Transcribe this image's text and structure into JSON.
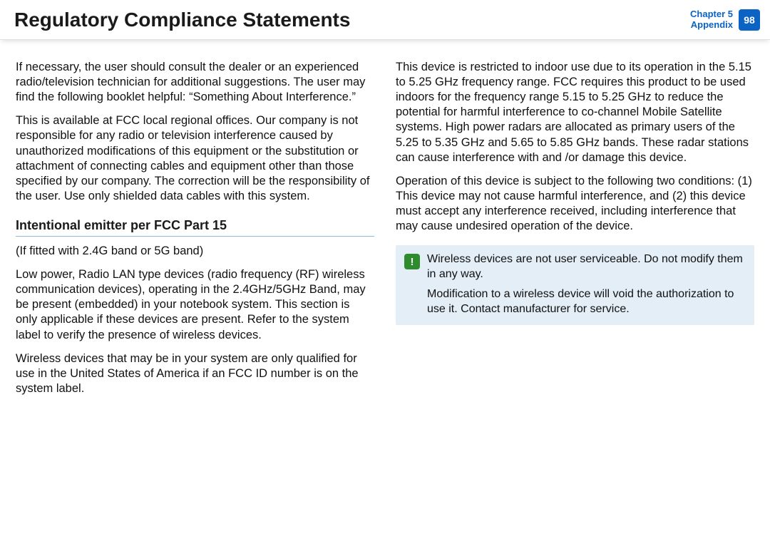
{
  "header": {
    "title": "Regulatory Compliance Statements",
    "chapter_line1": "Chapter 5",
    "chapter_line2": "Appendix",
    "page_number": "98"
  },
  "left": {
    "p1": "If necessary, the user should consult the dealer or an experienced radio/television technician for additional suggestions. The user may find the following booklet helpful: “Something About Interference.”",
    "p2": "This is available at FCC local regional offices. Our company is not responsible for any radio or television interference caused by unauthorized modifications of this equipment or the substitution or attachment of connecting cables and equipment other than those specified by our company. The correction will be the responsibility of the user. Use only shielded data cables with this system.",
    "subhead": "Intentional emitter per FCC Part 15",
    "p3": "(If fitted with 2.4G band or 5G band)",
    "p4": "Low power, Radio LAN type devices (radio frequency (RF) wireless communication devices), operating in the 2.4GHz/5GHz Band, may be present (embedded) in your notebook system. This section is only applicable if these devices are present. Refer to the system label to verify the presence of wireless devices.",
    "p5": "Wireless devices that may be in your system are only qualified for use in the United States of America if an FCC ID number is on the system label."
  },
  "right": {
    "p1": "This device is restricted to indoor use due to its operation in the 5.15 to 5.25 GHz frequency range. FCC requires this product to be used indoors for the frequency range 5.15 to 5.25 GHz to reduce the potential for harmful interference to co-channel Mobile Satellite systems. High power radars are allocated as primary users of the 5.25 to 5.35 GHz and 5.65 to 5.85 GHz bands. These radar stations can cause interference with and /or damage this device.",
    "p2": "Operation of this device is subject to the following two conditions: (1) This device may not cause harmful interference, and (2) this device must accept any interference received, including interference that may cause undesired operation of the device.",
    "note": {
      "icon": "!",
      "l1": "Wireless devices are not user serviceable. Do not modify them in any way.",
      "l2": "Modification to a wireless device will void the authorization to use it. Contact manufacturer for service."
    }
  },
  "colors": {
    "accent": "#0b63c4",
    "note_bg": "#e3eef7",
    "note_icon_bg": "#2e8b2e",
    "underline": "#8fb7e0"
  }
}
